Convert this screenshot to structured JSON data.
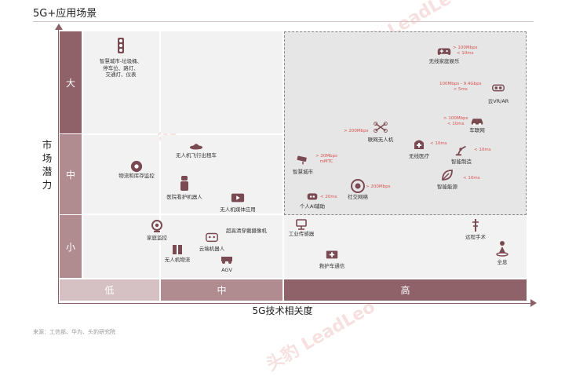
{
  "title": "5G+应用场景",
  "y_axis": {
    "title": "市场潜力",
    "levels": [
      "大",
      "中",
      "小"
    ]
  },
  "x_axis": {
    "title": "5G技术相关度",
    "levels": [
      "低",
      "中",
      "高"
    ]
  },
  "source": "来源：工信部、华为、头豹研究院",
  "watermark": "头豹 LeadLeo",
  "colors": {
    "dark": "#8f6168",
    "mid": "#b08b90",
    "light": "#d5c0c3",
    "spec_text": "#d9534f",
    "icon": "#7a4a52"
  },
  "apps": {
    "smart_city_low": {
      "icon": "traffic-light-icon",
      "label": "智慧城市-垃圾桶、\n停车位、路灯、\n交通灯、仪表"
    },
    "wireless_home_ent": {
      "icon": "gamepad-icon",
      "label": "无线家庭娱乐",
      "spec": "> 100Mbps\n< 10ms"
    },
    "cloud_vr_ar": {
      "icon": "vr-headset-icon",
      "label": "云VR/AR",
      "spec": "100Mbps - 9.4Gbps\n< 5ms"
    },
    "connected_car": {
      "icon": "car-icon",
      "label": "车联网",
      "spec": "> 100Mbps\n< 10ms"
    },
    "drone_taxi": {
      "icon": "ufo-icon",
      "label": "无人机飞行出租车"
    },
    "logistics_monitor": {
      "icon": "dome-camera-icon",
      "label": "物流和库存监控"
    },
    "hospital_robot": {
      "icon": "nurse-robot-icon",
      "label": "医院看护机器人"
    },
    "drone_media": {
      "icon": "video-play-icon",
      "label": "无人机媒体应用"
    },
    "connected_drone": {
      "icon": "drone-icon",
      "label": "联网无人机",
      "spec": "> 200Mbps"
    },
    "wireless_medical": {
      "icon": "medical-icon",
      "label": "无线医疗",
      "spec": "< 10ms"
    },
    "smart_city_mid": {
      "icon": "cctv-icon",
      "label": "智慧城市",
      "spec": "> 20Mbps\nmMTC"
    },
    "smart_mfg": {
      "icon": "robot-arm-icon",
      "label": "智能制造",
      "spec": "< 10ms"
    },
    "smart_energy": {
      "icon": "leaf-icon",
      "label": "智能能源",
      "spec": "< 10ms"
    },
    "social_network": {
      "icon": "aperture-icon",
      "label": "社交网络",
      "spec": "> 200Mbps"
    },
    "personal_ai": {
      "icon": "robot-head-icon",
      "label": "个人AI辅助",
      "spec": "< 20ms"
    },
    "home_monitor": {
      "icon": "webcam-icon",
      "label": "家庭监控"
    },
    "uhd_camera": {
      "icon": "",
      "label": "超高清穿戴摄像机"
    },
    "drone_logistics": {
      "icon": "package-icon",
      "label": "无人机物流"
    },
    "cloud_robot": {
      "icon": "robot-face-icon",
      "label": "云端机器人"
    },
    "agv": {
      "icon": "agv-icon",
      "label": "AGV"
    },
    "industrial_sensor": {
      "icon": "sensor-icon",
      "label": "工业传感器"
    },
    "ambulance": {
      "icon": "ambulance-icon",
      "label": "救护车通信"
    },
    "remote_surgery": {
      "icon": "surgery-icon",
      "label": "远程手术"
    },
    "holographic": {
      "icon": "hologram-icon",
      "label": "全息"
    }
  }
}
